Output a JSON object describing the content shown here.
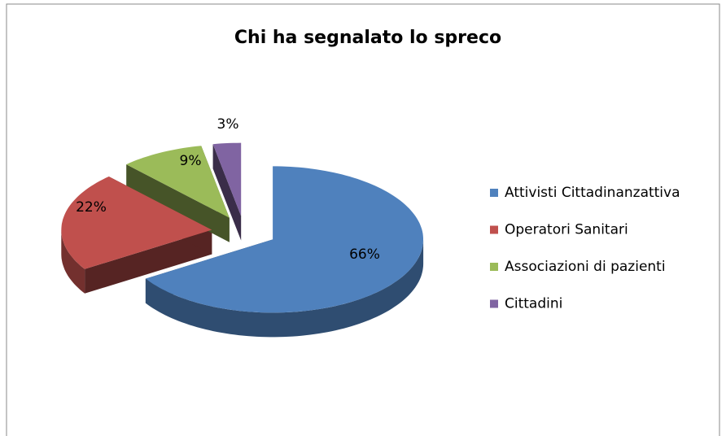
{
  "chart_data": {
    "type": "pie",
    "title": "Chi ha segnalato lo spreco",
    "categories": [
      "Attivisti Cittadinanzattiva",
      "Operatori Sanitari",
      "Associazioni di pazienti",
      "Cittadini"
    ],
    "values": [
      66,
      22,
      9,
      3
    ],
    "value_labels": [
      "66%",
      "22%",
      "9%",
      "3%"
    ],
    "colors": [
      "#4f81bd",
      "#c0504d",
      "#9bbb59",
      "#8064a2"
    ],
    "legend": "right",
    "exploded": true,
    "three_d": true
  }
}
